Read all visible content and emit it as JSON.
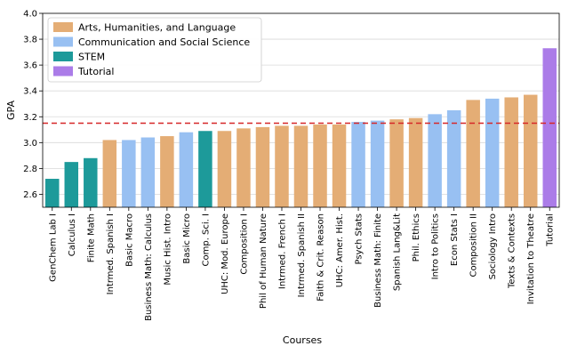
{
  "chart_data": {
    "type": "bar",
    "xlabel": "Courses",
    "ylabel": "GPA",
    "ylim": [
      2.5,
      4.0
    ],
    "yticks": [
      "2.6",
      "2.8",
      "3.0",
      "3.2",
      "3.4",
      "3.6",
      "3.8",
      "4.0"
    ],
    "grid": "y",
    "legend_position": "top-left",
    "reference_line": {
      "value": 3.15,
      "color": "#d62728",
      "style": "dashed"
    },
    "groups": [
      {
        "name": "Arts, Humanities, and Language",
        "color": "#e4ad75"
      },
      {
        "name": "Communication and Social Science",
        "color": "#98c0f2"
      },
      {
        "name": "STEM",
        "color": "#1d9a9a"
      },
      {
        "name": "Tutorial",
        "color": "#ab7ce8"
      }
    ],
    "categories": [
      "GenChem Lab I",
      "Calculus I",
      "Finite Math",
      "Intrmed. Spanish I",
      "Basic Macro",
      "Business Math: Calculus",
      "Music Hist. Intro",
      "Basic Micro",
      "Comp. Sci. I",
      "UHC: Mod. Europe",
      "Composition I",
      "Phil of Human Nature",
      "Intrmed. French I",
      "Intrmed. Spanish II",
      "Faith & Crit. Reason",
      "UHC: Amer. Hist.",
      "Psych Stats",
      "Business Math: Finite",
      "Spanish Lang&Lit",
      "Phil. Ethics",
      "Intro to Politics",
      "Econ Stats I",
      "Composition II",
      "Sociology Intro",
      "Texts & Contexts",
      "Invitation to Theatre",
      "Tutorial"
    ],
    "values": [
      2.72,
      2.85,
      2.88,
      3.02,
      3.02,
      3.04,
      3.05,
      3.08,
      3.09,
      3.09,
      3.11,
      3.12,
      3.13,
      3.13,
      3.14,
      3.14,
      3.16,
      3.17,
      3.18,
      3.19,
      3.22,
      3.25,
      3.33,
      3.34,
      3.35,
      3.37,
      3.73
    ],
    "bar_groups": [
      2,
      2,
      2,
      0,
      1,
      1,
      0,
      1,
      2,
      0,
      0,
      0,
      0,
      0,
      0,
      0,
      1,
      1,
      0,
      0,
      1,
      1,
      0,
      1,
      0,
      0,
      3
    ]
  }
}
